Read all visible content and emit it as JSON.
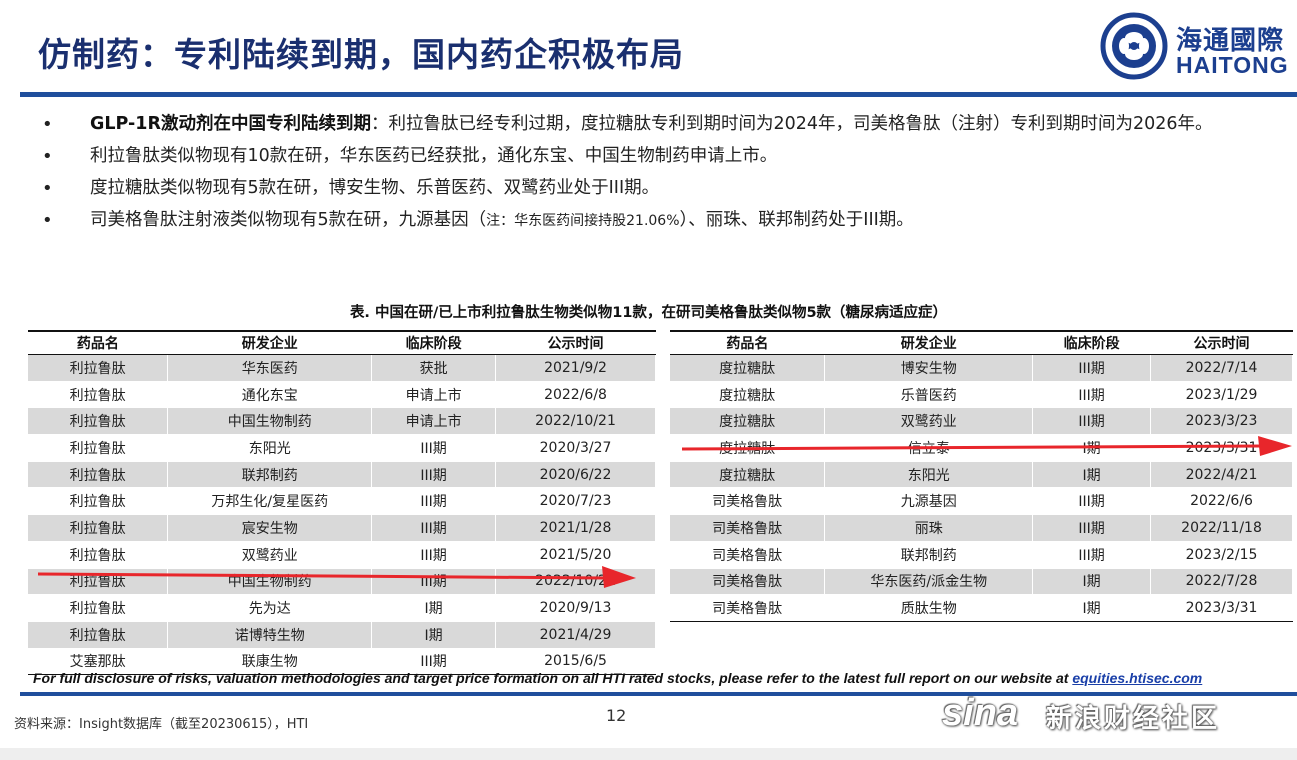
{
  "header": {
    "title": "仿制药：专利陆续到期，国内药企积极布局",
    "logo_cn": "海通國際",
    "logo_en": "HAITONG"
  },
  "bullets": {
    "b1_bold": "GLP-1R激动剂在中国专利陆续到期",
    "b1_text": "：利拉鲁肽已经专利过期，度拉糖肽专利到期时间为2024年，司美格鲁肽（注射）专利到期时间为2026年。",
    "b2": "利拉鲁肽类似物现有10款在研，华东医药已经获批，通化东宝、中国生物制药申请上市。",
    "b3": "度拉糖肽类似物现有5款在研，博安生物、乐普医药、双鹭药业处于III期。",
    "b4_a": "司美格鲁肽注射液类似物现有5款在研，九源基因（",
    "b4_note": "注：华东医药间接持股21.06%",
    "b4_b": "）、丽珠、联邦制药处于III期。"
  },
  "table_caption": "表. 中国在研/已上市利拉鲁肽生物类似物11款，在研司美格鲁肽类似物5款（糖尿病适应症）",
  "columns": [
    "药品名",
    "研发企业",
    "临床阶段",
    "公示时间"
  ],
  "left_table": [
    [
      "利拉鲁肽",
      "华东医药",
      "获批",
      "2021/9/2"
    ],
    [
      "利拉鲁肽",
      "通化东宝",
      "申请上市",
      "2022/6/8"
    ],
    [
      "利拉鲁肽",
      "中国生物制药",
      "申请上市",
      "2022/10/21"
    ],
    [
      "利拉鲁肽",
      "东阳光",
      "III期",
      "2020/3/27"
    ],
    [
      "利拉鲁肽",
      "联邦制药",
      "III期",
      "2020/6/22"
    ],
    [
      "利拉鲁肽",
      "万邦生化/复星医药",
      "III期",
      "2020/7/23"
    ],
    [
      "利拉鲁肽",
      "宸安生物",
      "III期",
      "2021/1/28"
    ],
    [
      "利拉鲁肽",
      "双鹭药业",
      "III期",
      "2021/5/20"
    ],
    [
      "利拉鲁肽",
      "中国生物制药",
      "III期",
      "2022/10/21"
    ],
    [
      "利拉鲁肽",
      "先为达",
      "I期",
      "2020/9/13"
    ],
    [
      "利拉鲁肽",
      "诺博特生物",
      "I期",
      "2021/4/29"
    ],
    [
      "艾塞那肽",
      "联康生物",
      "III期",
      "2015/6/5"
    ]
  ],
  "right_table": [
    [
      "度拉糖肽",
      "博安生物",
      "III期",
      "2022/7/14"
    ],
    [
      "度拉糖肽",
      "乐普医药",
      "III期",
      "2023/1/29"
    ],
    [
      "度拉糖肽",
      "双鹭药业",
      "III期",
      "2023/3/23"
    ],
    [
      "度拉糖肽",
      "信立泰",
      "I期",
      "2023/3/31"
    ],
    [
      "度拉糖肽",
      "东阳光",
      "I期",
      "2022/4/21"
    ],
    [
      "司美格鲁肽",
      "九源基因",
      "III期",
      "2022/6/6"
    ],
    [
      "司美格鲁肽",
      "丽珠",
      "III期",
      "2022/11/18"
    ],
    [
      "司美格鲁肽",
      "联邦制药",
      "III期",
      "2023/2/15"
    ],
    [
      "司美格鲁肽",
      "华东医药/派金生物",
      "I期",
      "2022/7/28"
    ],
    [
      "司美格鲁肽",
      "质肽生物",
      "I期",
      "2023/3/31"
    ]
  ],
  "footer": {
    "disclaimer": "For full disclosure of risks, valuation methodologies and target price formation on all HTI rated stocks, please refer to the latest full report on our website at ",
    "link": "equities.htisec.com",
    "source": "资料来源：Insight数据库（截至20230615），HTI",
    "page": "12",
    "watermark_logo": "sina",
    "watermark_text": "新浪财经社区"
  },
  "colors": {
    "brand_blue": "#1f4e9c",
    "title_blue": "#1a2f6f",
    "row_gray": "#d9d9d9",
    "arrow_red": "#e8262b"
  }
}
